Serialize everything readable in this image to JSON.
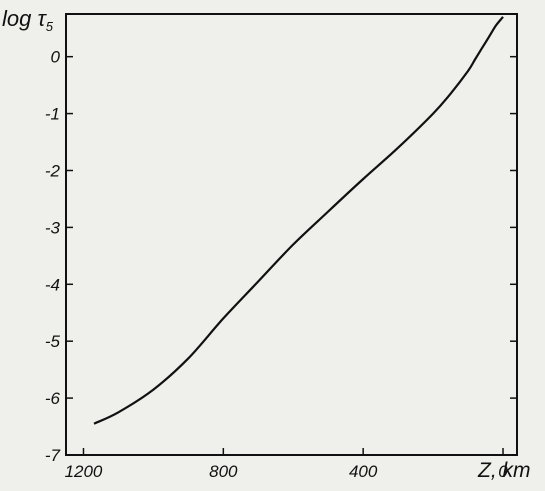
{
  "chart_data": {
    "type": "line",
    "title": "",
    "xlabel": "Z, km",
    "ylabel_base": "log τ",
    "ylabel_sub": "5",
    "xlim": [
      1250,
      -40
    ],
    "ylim": [
      -7,
      0.75
    ],
    "x_ticks": [
      1200,
      800,
      400,
      0
    ],
    "x_tick_labels": [
      "1200",
      "800",
      "400",
      "0"
    ],
    "y_ticks": [
      0,
      -1,
      -2,
      -3,
      -4,
      -5,
      -6,
      -7
    ],
    "y_tick_labels": [
      "0",
      "-1",
      "-2",
      "-3",
      "-4",
      "-5",
      "-6",
      "-7"
    ],
    "x_axis_inverted": true,
    "grid": false,
    "legend": "none",
    "line_color": "#111111",
    "axis_color": "#111111",
    "background": "#efefeb",
    "series": [
      {
        "x": [
          1170,
          1100,
          1000,
          900,
          800,
          700,
          600,
          500,
          400,
          300,
          200,
          150,
          100,
          80,
          60,
          40,
          20,
          0
        ],
        "y": [
          -6.45,
          -6.25,
          -5.85,
          -5.3,
          -4.6,
          -3.95,
          -3.3,
          -2.72,
          -2.15,
          -1.6,
          -1.0,
          -0.65,
          -0.25,
          -0.05,
          0.15,
          0.35,
          0.55,
          0.7
        ]
      }
    ]
  }
}
